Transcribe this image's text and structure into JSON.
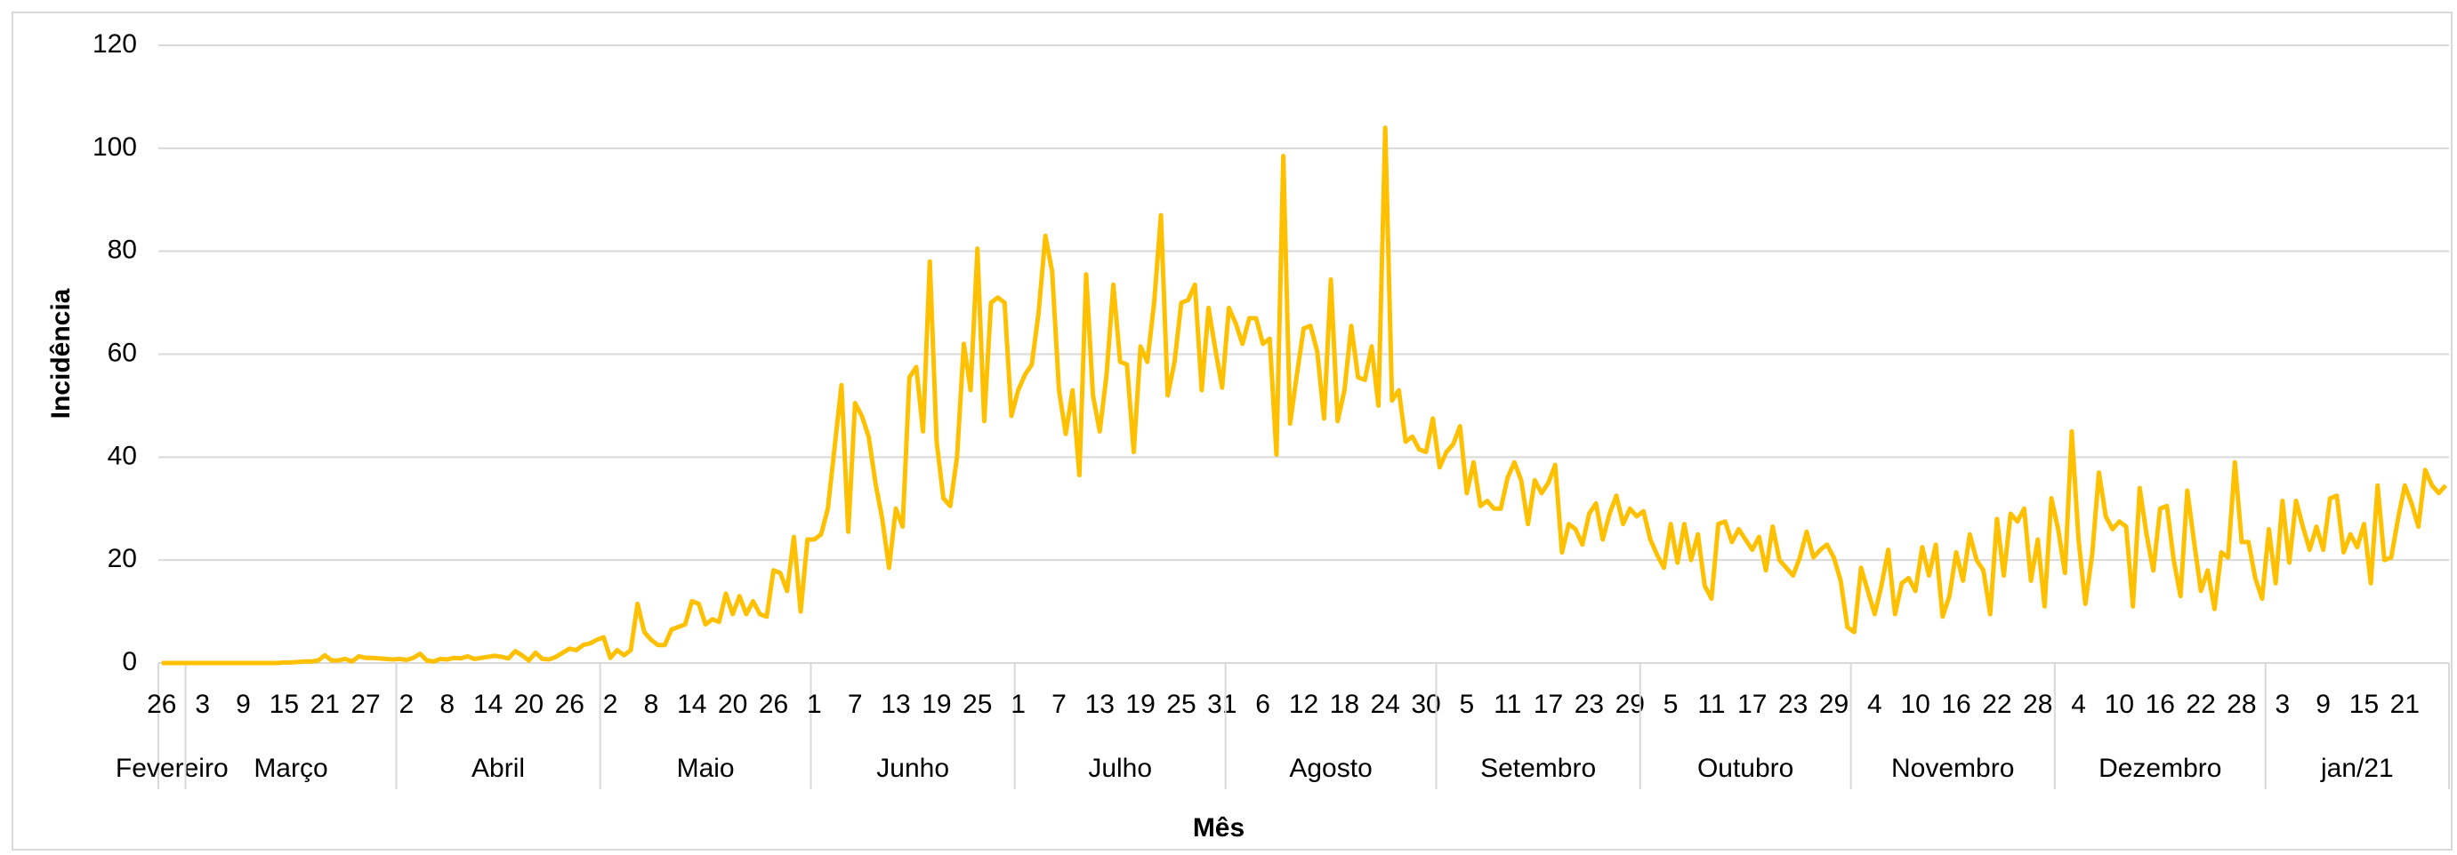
{
  "chart_data": {
    "type": "line",
    "x_label": "Mês",
    "y_label": "Incidência",
    "color": "#ffc000",
    "grid": true,
    "ylim": [
      0,
      120
    ],
    "yticks": [
      0,
      20,
      40,
      60,
      80,
      100,
      120
    ],
    "months": [
      {
        "label": "Fevereiro",
        "days": [
          "26",
          null,
          null,
          null
        ]
      },
      {
        "label": "Março",
        "days": [
          null,
          null,
          "3",
          null,
          null,
          null,
          null,
          null,
          "9",
          null,
          null,
          null,
          null,
          null,
          "15",
          null,
          null,
          null,
          null,
          null,
          "21",
          null,
          null,
          null,
          null,
          null,
          "27",
          null,
          null,
          null,
          null
        ]
      },
      {
        "label": "Abril",
        "days": [
          null,
          "2",
          null,
          null,
          null,
          null,
          null,
          "8",
          null,
          null,
          null,
          null,
          null,
          "14",
          null,
          null,
          null,
          null,
          null,
          "20",
          null,
          null,
          null,
          null,
          null,
          "26",
          null,
          null,
          null,
          null
        ]
      },
      {
        "label": "Maio",
        "days": [
          null,
          "2",
          null,
          null,
          null,
          null,
          null,
          "8",
          null,
          null,
          null,
          null,
          null,
          "14",
          null,
          null,
          null,
          null,
          null,
          "20",
          null,
          null,
          null,
          null,
          null,
          "26",
          null,
          null,
          null,
          null,
          null
        ]
      },
      {
        "label": "Junho",
        "days": [
          "1",
          null,
          null,
          null,
          null,
          null,
          "7",
          null,
          null,
          null,
          null,
          null,
          "13",
          null,
          null,
          null,
          null,
          null,
          "19",
          null,
          null,
          null,
          null,
          null,
          "25",
          null,
          null,
          null,
          null,
          null
        ]
      },
      {
        "label": "Julho",
        "days": [
          "1",
          null,
          null,
          null,
          null,
          null,
          "7",
          null,
          null,
          null,
          null,
          null,
          "13",
          null,
          null,
          null,
          null,
          null,
          "19",
          null,
          null,
          null,
          null,
          null,
          "25",
          null,
          null,
          null,
          null,
          null,
          "31"
        ]
      },
      {
        "label": "Agosto",
        "days": [
          null,
          null,
          null,
          null,
          null,
          "6",
          null,
          null,
          null,
          null,
          null,
          "12",
          null,
          null,
          null,
          null,
          null,
          "18",
          null,
          null,
          null,
          null,
          null,
          "24",
          null,
          null,
          null,
          null,
          null,
          "30",
          null
        ]
      },
      {
        "label": "Setembro",
        "days": [
          null,
          null,
          null,
          null,
          "5",
          null,
          null,
          null,
          null,
          null,
          "11",
          null,
          null,
          null,
          null,
          null,
          "17",
          null,
          null,
          null,
          null,
          null,
          "23",
          null,
          null,
          null,
          null,
          null,
          "29",
          null
        ]
      },
      {
        "label": "Outubro",
        "days": [
          null,
          null,
          null,
          null,
          "5",
          null,
          null,
          null,
          null,
          null,
          "11",
          null,
          null,
          null,
          null,
          null,
          "17",
          null,
          null,
          null,
          null,
          null,
          "23",
          null,
          null,
          null,
          null,
          null,
          "29",
          null,
          null
        ]
      },
      {
        "label": "Novembro",
        "days": [
          null,
          null,
          null,
          "4",
          null,
          null,
          null,
          null,
          null,
          "10",
          null,
          null,
          null,
          null,
          null,
          "16",
          null,
          null,
          null,
          null,
          null,
          "22",
          null,
          null,
          null,
          null,
          null,
          "28",
          null,
          null
        ]
      },
      {
        "label": "Dezembro",
        "days": [
          null,
          null,
          null,
          "4",
          null,
          null,
          null,
          null,
          null,
          "10",
          null,
          null,
          null,
          null,
          null,
          "16",
          null,
          null,
          null,
          null,
          null,
          "22",
          null,
          null,
          null,
          null,
          null,
          "28",
          null,
          null,
          null
        ]
      },
      {
        "label": "jan/21",
        "days": [
          null,
          null,
          "3",
          null,
          null,
          null,
          null,
          null,
          "9",
          null,
          null,
          null,
          null,
          null,
          "15",
          null,
          null,
          null,
          null,
          null,
          "21",
          null,
          null,
          null,
          null,
          null,
          null
        ]
      }
    ],
    "values": [
      0,
      0,
      0,
      0,
      0,
      0,
      0,
      0,
      0,
      0,
      0,
      0,
      0,
      0,
      0,
      0,
      0,
      0,
      0.1,
      0.1,
      0.2,
      0.3,
      0.3,
      0.5,
      1.5,
      0.5,
      0.5,
      0.8,
      0.3,
      1.3,
      1,
      1,
      0.9,
      0.8,
      0.7,
      0.8,
      0.6,
      1,
      1.8,
      0.5,
      0.3,
      0.8,
      0.7,
      1,
      0.9,
      1.3,
      0.8,
      1,
      1.2,
      1.4,
      1.2,
      0.9,
      2.3,
      1.5,
      0.5,
      2,
      0.8,
      0.7,
      1.2,
      2,
      2.8,
      2.5,
      3.5,
      3.8,
      4.5,
      5,
      1,
      2.5,
      1.5,
      2.5,
      11.5,
      6,
      4.5,
      3.5,
      3.5,
      6.5,
      7,
      7.5,
      12,
      11.5,
      7.5,
      8.5,
      8,
      13.5,
      9.5,
      13,
      9.5,
      12,
      9.5,
      9,
      18,
      17.5,
      14,
      24.5,
      10,
      24,
      24,
      25,
      30,
      42,
      54,
      25.5,
      50.5,
      48,
      44,
      35,
      28,
      18.5,
      30,
      26.5,
      55.5,
      57.5,
      45,
      78,
      43,
      32,
      30.5,
      40,
      62,
      53,
      80.5,
      47,
      70,
      71,
      70,
      48,
      53,
      56,
      58,
      68,
      83,
      76,
      53,
      44.5,
      53,
      36.5,
      75.5,
      52,
      45,
      56,
      73.5,
      58.5,
      58,
      41,
      61.5,
      58.5,
      70,
      87,
      52,
      58.5,
      70,
      70.5,
      73.5,
      53,
      69,
      61,
      53.5,
      69,
      66,
      62,
      67,
      67,
      62,
      63,
      40.5,
      98.5,
      46.5,
      56,
      65,
      65.5,
      60.5,
      47.5,
      74.5,
      47,
      53,
      65.5,
      55.5,
      55,
      61.5,
      50,
      104,
      51,
      53,
      43,
      44,
      41.5,
      41,
      47.5,
      38,
      41,
      42.5,
      46,
      33,
      39,
      30.5,
      31.5,
      30,
      30,
      36,
      39,
      35.5,
      27,
      35.5,
      33,
      35,
      38.5,
      21.5,
      27,
      26,
      23,
      29,
      31,
      24,
      29,
      32.5,
      27,
      30,
      28.5,
      29.5,
      24,
      21,
      18.5,
      27,
      19.5,
      27,
      20,
      25,
      15,
      12.5,
      27,
      27.5,
      23.5,
      26,
      24,
      22,
      24.5,
      18,
      26.5,
      20,
      18.5,
      17,
      20.5,
      25.5,
      20.5,
      22,
      23,
      20.5,
      16,
      7,
      6,
      18.5,
      14,
      9.5,
      15,
      22,
      9.5,
      15.5,
      16.5,
      14,
      22.5,
      17,
      23,
      9,
      13,
      21.5,
      16,
      25,
      20,
      18,
      9.5,
      28,
      17,
      29,
      27.5,
      30,
      16,
      24,
      11,
      32,
      26,
      17.5,
      45,
      24,
      11.5,
      21,
      37,
      28.5,
      26,
      27.5,
      26.5,
      11,
      34,
      25,
      18,
      30,
      30.5,
      20,
      13,
      33.5,
      23.5,
      14,
      18,
      10.5,
      21.5,
      20.5,
      39,
      23.5,
      23.5,
      16.5,
      12.5,
      26,
      15.5,
      31.5,
      19.5,
      31.5,
      26.5,
      22,
      26.5,
      22,
      32,
      32.5,
      21.5,
      25,
      22.5,
      27,
      15.5,
      34.5,
      20,
      20.5,
      28,
      34.5,
      31,
      26.5,
      37.5,
      34.5,
      33,
      34.5
    ]
  }
}
